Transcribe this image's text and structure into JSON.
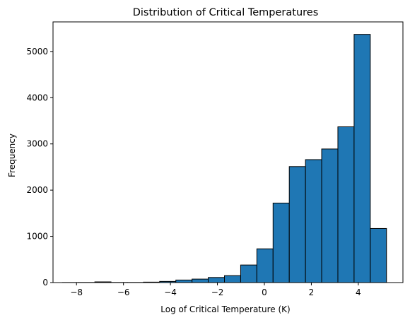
{
  "chart_data": {
    "type": "bar",
    "subtype": "histogram",
    "title": "Distribution of Critical Temperatures",
    "xlabel": "Log of Critical Temperature (K)",
    "ylabel": "Frequency",
    "xlim": [
      -9.0,
      5.9
    ],
    "ylim": [
      0,
      5640
    ],
    "x_ticks": [
      -8,
      -6,
      -4,
      -2,
      0,
      2,
      4
    ],
    "y_ticks": [
      0,
      1000,
      2000,
      3000,
      4000,
      5000
    ],
    "grid": false,
    "legend": "none",
    "bar_color": "#1f77b4",
    "edge_color": "#000000",
    "bin_width": 0.69,
    "bins": [
      {
        "x0": -8.6,
        "x1": -7.91,
        "value": 2
      },
      {
        "x0": -7.91,
        "x1": -7.22,
        "value": 3
      },
      {
        "x0": -7.22,
        "x1": -6.53,
        "value": 15
      },
      {
        "x0": -6.53,
        "x1": -5.84,
        "value": 3
      },
      {
        "x0": -5.84,
        "x1": -5.15,
        "value": 3
      },
      {
        "x0": -5.15,
        "x1": -4.46,
        "value": 10
      },
      {
        "x0": -4.46,
        "x1": -3.77,
        "value": 25
      },
      {
        "x0": -3.77,
        "x1": -3.08,
        "value": 55
      },
      {
        "x0": -3.08,
        "x1": -2.39,
        "value": 75
      },
      {
        "x0": -2.39,
        "x1": -1.7,
        "value": 110
      },
      {
        "x0": -1.7,
        "x1": -1.01,
        "value": 150
      },
      {
        "x0": -1.01,
        "x1": -0.32,
        "value": 380
      },
      {
        "x0": -0.32,
        "x1": 0.37,
        "value": 730
      },
      {
        "x0": 0.37,
        "x1": 1.06,
        "value": 1720
      },
      {
        "x0": 1.06,
        "x1": 1.75,
        "value": 2510
      },
      {
        "x0": 1.75,
        "x1": 2.44,
        "value": 2660
      },
      {
        "x0": 2.44,
        "x1": 3.13,
        "value": 2890
      },
      {
        "x0": 3.13,
        "x1": 3.82,
        "value": 3370
      },
      {
        "x0": 3.82,
        "x1": 4.51,
        "value": 5370
      },
      {
        "x0": 4.51,
        "x1": 5.2,
        "value": 1170
      }
    ]
  }
}
